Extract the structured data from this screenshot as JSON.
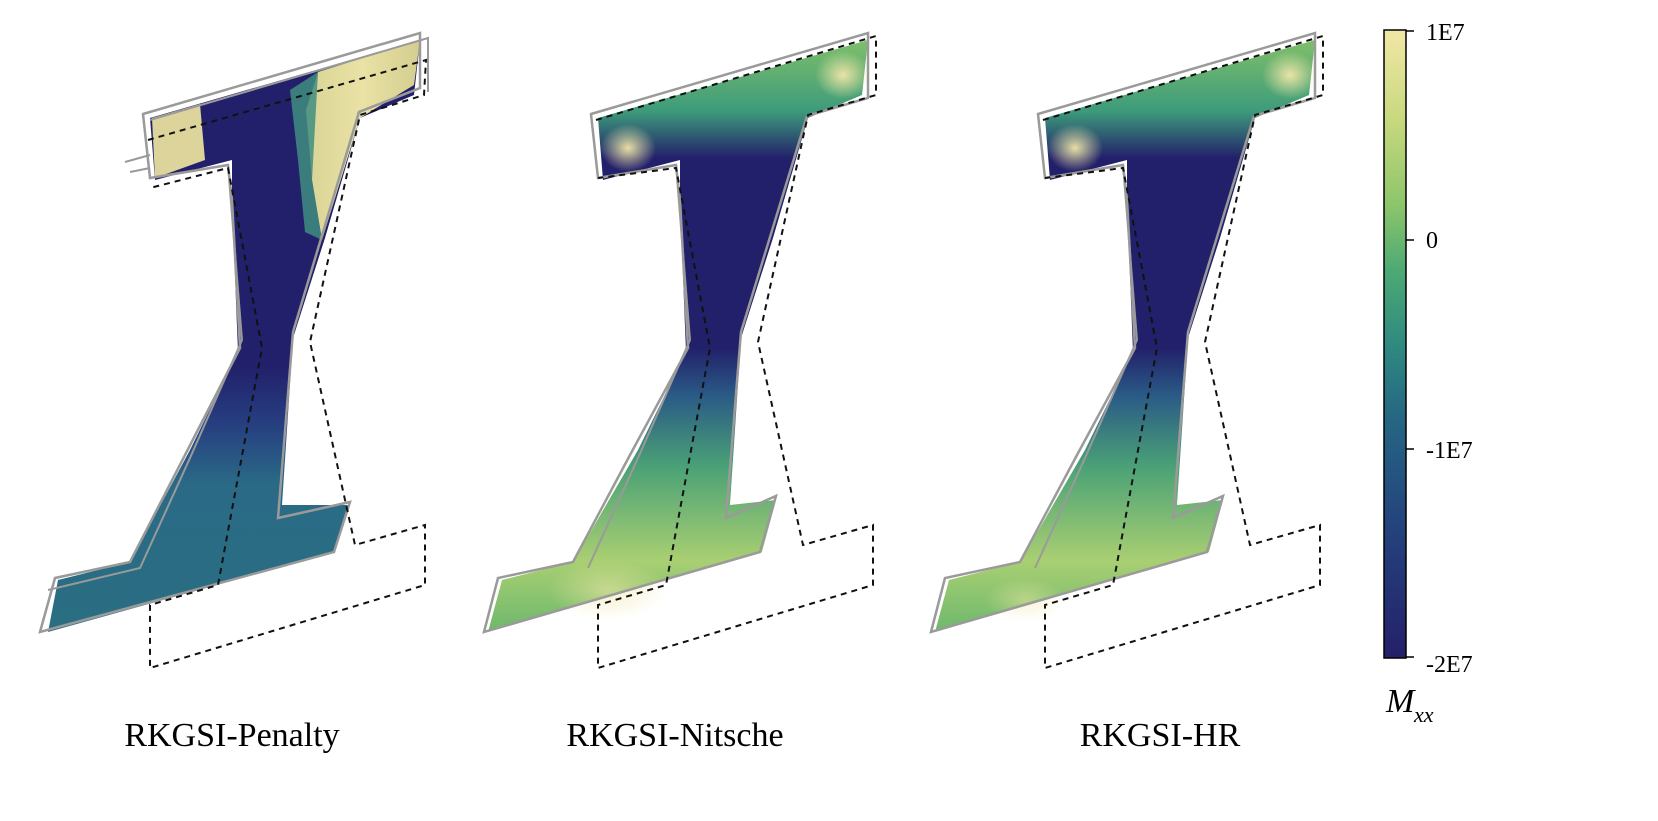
{
  "panels": [
    {
      "label": "RKGSI-Penalty",
      "variant": "penalty"
    },
    {
      "label": "RKGSI-Nitsche",
      "variant": "smooth"
    },
    {
      "label": "RKGSI-HR",
      "variant": "smooth"
    }
  ],
  "colorbar": {
    "ticks": [
      "1E7",
      "0",
      "-1E7",
      "-2E7"
    ],
    "title_main": "M",
    "title_sub": "xx",
    "colors": [
      "#f2e7a6",
      "#c9d97e",
      "#8cc56a",
      "#4eaa74",
      "#2f8a80",
      "#256683",
      "#24457e",
      "#24206a"
    ]
  }
}
